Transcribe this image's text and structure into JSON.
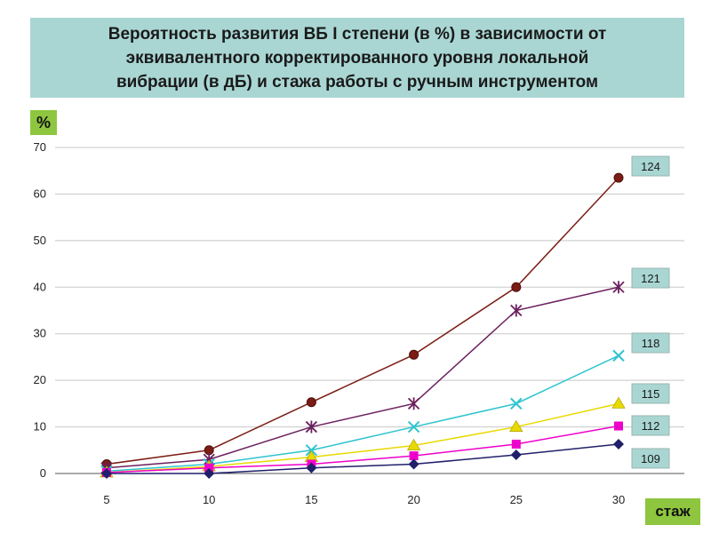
{
  "colors": {
    "title_bg": "#a9d6d3",
    "badge_bg": "#8ec63f",
    "label_bg": "#a9d6d3"
  },
  "chart_data": {
    "type": "line",
    "title": "Вероятность развития ВБ I степени (в %) в зависимости от\nэквивалентного корректированного уровня локальной\nвибрации  (в дБ) и стажа работы с ручным инструментом",
    "xlabel": "стаж",
    "ylabel": "%",
    "x": [
      5,
      10,
      15,
      20,
      25,
      30
    ],
    "xlim": [
      5,
      30
    ],
    "ylim": [
      0,
      70
    ],
    "y_ticks": [
      0,
      10,
      20,
      30,
      40,
      50,
      60,
      70
    ],
    "grid": true,
    "legend": "labels at right end of each line",
    "series": [
      {
        "name": "124",
        "color": "#7b1d15",
        "marker": "circle",
        "values": [
          2,
          5,
          15.3,
          25.5,
          40,
          63.5
        ]
      },
      {
        "name": "121",
        "color": "#6b1f5e",
        "marker": "star",
        "values": [
          1.2,
          3,
          10,
          15,
          35,
          40
        ]
      },
      {
        "name": "118",
        "color": "#2ec4cf",
        "marker": "x",
        "values": [
          0.5,
          2,
          5,
          10,
          15,
          25.3
        ]
      },
      {
        "name": "115",
        "color": "#e8d900",
        "marker": "triangle",
        "values": [
          0.2,
          1.5,
          3.5,
          6,
          10,
          15
        ]
      },
      {
        "name": "112",
        "color": "#ee00cc",
        "marker": "square",
        "values": [
          0.2,
          1.2,
          2,
          3.8,
          6.3,
          10.2
        ]
      },
      {
        "name": "109",
        "color": "#1f1f6a",
        "marker": "diamond",
        "values": [
          0,
          0,
          1.2,
          2,
          4,
          6.3
        ]
      }
    ]
  }
}
